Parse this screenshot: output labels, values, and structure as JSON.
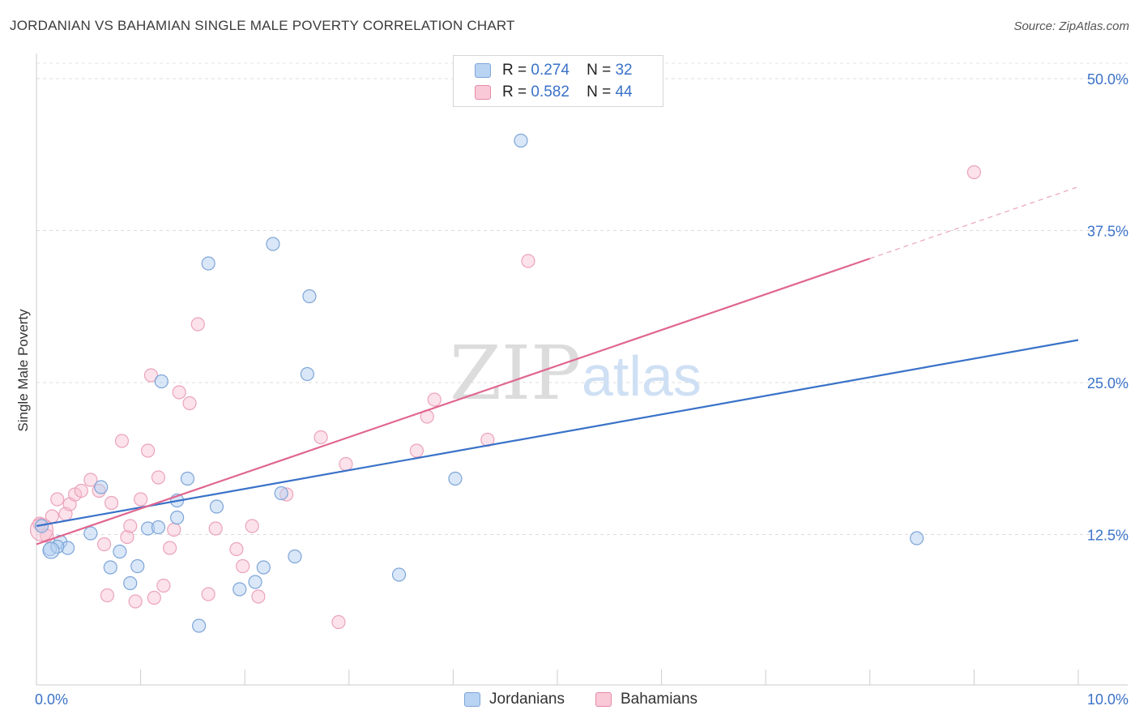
{
  "title": "JORDANIAN VS BAHAMIAN SINGLE MALE POVERTY CORRELATION CHART",
  "source": "Source: ZipAtlas.com",
  "watermark": {
    "zip": "ZIP",
    "atlas": "atlas"
  },
  "legend": [
    {
      "r_label": "R =",
      "r_value": "0.274",
      "n_label": "N =",
      "n_value": "32"
    },
    {
      "r_label": "R =",
      "r_value": "0.582",
      "n_label": "N =",
      "n_value": "44"
    }
  ],
  "chart_data": {
    "type": "scatter",
    "title": "JORDANIAN VS BAHAMIAN SINGLE MALE POVERTY CORRELATION CHART",
    "xlabel": "",
    "ylabel": "Single Male Poverty",
    "xlim": [
      0,
      10
    ],
    "ylim": [
      0,
      50
    ],
    "x_tick_labels": [
      "0.0%",
      "10.0%"
    ],
    "y_ticks": [
      12.5,
      25.0,
      37.5,
      50.0
    ],
    "y_tick_labels": [
      "12.5%",
      "25.0%",
      "37.5%",
      "50.0%"
    ],
    "grid": true,
    "legend_position": "bottom-center",
    "colors": {
      "Jordanians": "#3a72c8",
      "Bahamians": "#e0668f"
    },
    "series": [
      {
        "name": "Jordanians",
        "r": 0.274,
        "n": 32,
        "trend": {
          "x": [
            0,
            10
          ],
          "y": [
            13.2,
            28.5
          ]
        },
        "points": [
          [
            0.05,
            13.2
          ],
          [
            0.13,
            11.3
          ],
          [
            0.23,
            11.9
          ],
          [
            0.3,
            11.4
          ],
          [
            0.52,
            12.6
          ],
          [
            0.62,
            16.4
          ],
          [
            0.71,
            9.8
          ],
          [
            0.8,
            11.1
          ],
          [
            0.9,
            8.5
          ],
          [
            0.97,
            9.9
          ],
          [
            1.07,
            13.0
          ],
          [
            1.17,
            13.1
          ],
          [
            1.2,
            25.1
          ],
          [
            1.35,
            13.9
          ],
          [
            1.45,
            17.1
          ],
          [
            1.56,
            5.0
          ],
          [
            1.65,
            34.8
          ],
          [
            1.73,
            14.8
          ],
          [
            1.95,
            8.0
          ],
          [
            2.1,
            8.6
          ],
          [
            2.18,
            9.8
          ],
          [
            2.27,
            36.4
          ],
          [
            2.35,
            15.9
          ],
          [
            2.48,
            10.7
          ],
          [
            2.6,
            25.7
          ],
          [
            2.62,
            32.1
          ],
          [
            3.48,
            9.2
          ],
          [
            4.02,
            17.1
          ],
          [
            4.65,
            44.9
          ],
          [
            8.45,
            12.2
          ],
          [
            1.35,
            15.3
          ],
          [
            0.2,
            11.5
          ]
        ]
      },
      {
        "name": "Bahamians",
        "r": 0.582,
        "n": 44,
        "trend": {
          "x": [
            0,
            8.0
          ],
          "y": [
            11.7,
            35.2
          ]
        },
        "trend_dashed": {
          "x": [
            8.0,
            10
          ],
          "y": [
            35.2,
            41.1
          ]
        },
        "points": [
          [
            0.03,
            13.4
          ],
          [
            0.1,
            12.4
          ],
          [
            0.15,
            14.0
          ],
          [
            0.2,
            15.4
          ],
          [
            0.28,
            14.2
          ],
          [
            0.32,
            15.0
          ],
          [
            0.37,
            15.8
          ],
          [
            0.43,
            16.1
          ],
          [
            0.52,
            17.0
          ],
          [
            0.6,
            16.1
          ],
          [
            0.65,
            11.7
          ],
          [
            0.68,
            7.5
          ],
          [
            0.72,
            15.1
          ],
          [
            0.82,
            20.2
          ],
          [
            0.87,
            12.3
          ],
          [
            0.9,
            13.2
          ],
          [
            0.95,
            7.0
          ],
          [
            1.0,
            15.4
          ],
          [
            1.07,
            19.4
          ],
          [
            1.1,
            25.6
          ],
          [
            1.13,
            7.3
          ],
          [
            1.17,
            17.2
          ],
          [
            1.22,
            8.3
          ],
          [
            1.28,
            11.4
          ],
          [
            1.32,
            12.9
          ],
          [
            1.37,
            24.2
          ],
          [
            1.47,
            23.3
          ],
          [
            1.55,
            29.8
          ],
          [
            1.65,
            7.6
          ],
          [
            1.72,
            13.0
          ],
          [
            1.92,
            11.3
          ],
          [
            1.98,
            9.9
          ],
          [
            2.07,
            13.2
          ],
          [
            2.13,
            7.4
          ],
          [
            2.4,
            15.8
          ],
          [
            2.73,
            20.5
          ],
          [
            2.9,
            5.3
          ],
          [
            2.97,
            18.3
          ],
          [
            3.65,
            19.4
          ],
          [
            3.75,
            22.2
          ],
          [
            3.82,
            23.6
          ],
          [
            4.33,
            20.3
          ],
          [
            4.72,
            35.0
          ],
          [
            9.0,
            42.3
          ]
        ]
      }
    ]
  },
  "bottom_legend": [
    "Jordanians",
    "Bahamians"
  ]
}
